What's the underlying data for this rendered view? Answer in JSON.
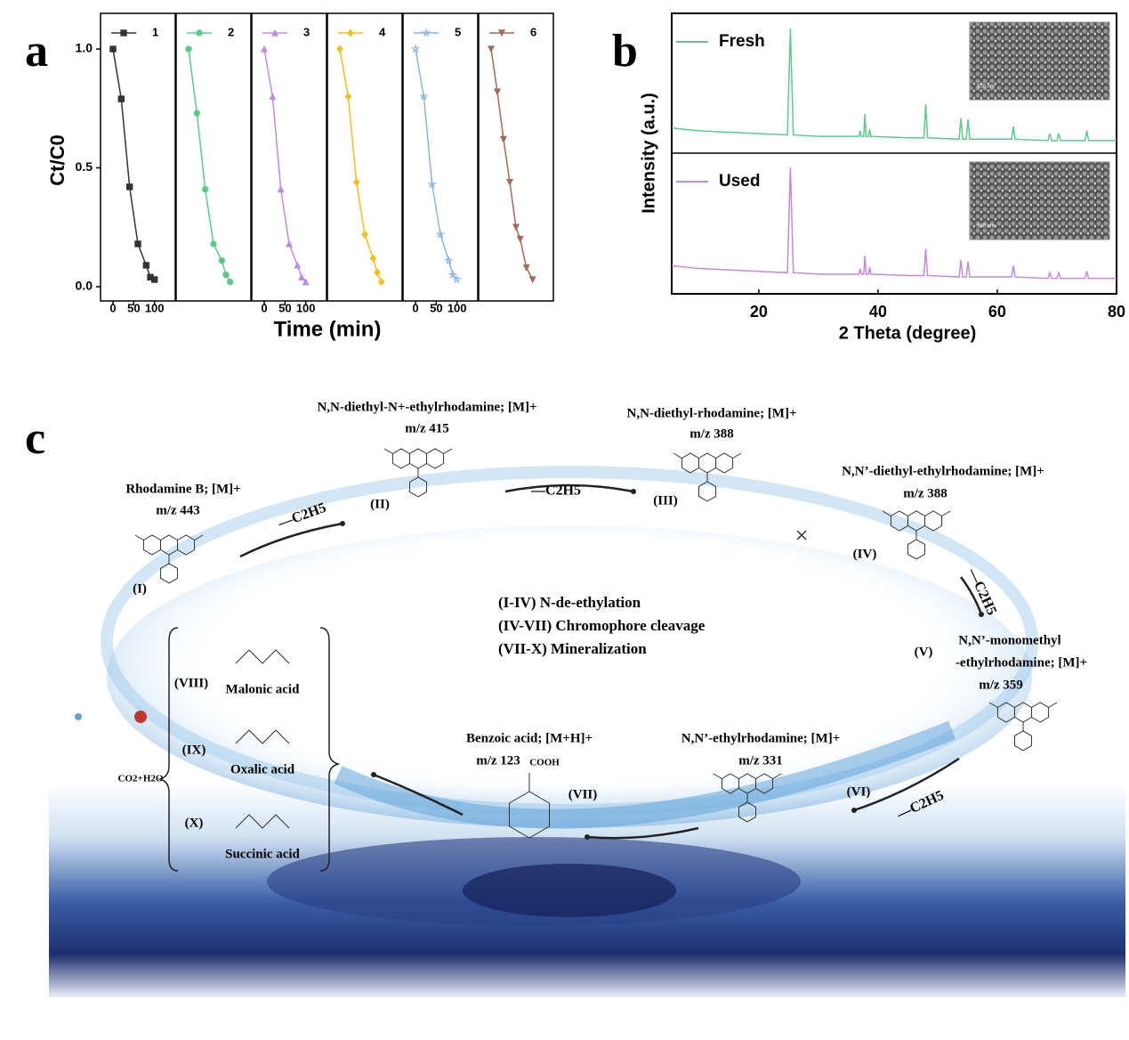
{
  "panel_labels": [
    "a",
    "b",
    "c"
  ],
  "chart_data": [
    {
      "type": "line",
      "ylabel": "Ct/C0",
      "xlabel": "Time (min)",
      "xlim": [
        -30,
        150
      ],
      "ylim": [
        -0.06,
        1.15
      ],
      "yticks": [
        {
          "value": 0,
          "label": "0.0"
        },
        {
          "value": 0.5,
          "label": "0.5"
        },
        {
          "value": 1,
          "label": "1.0"
        }
      ],
      "series": [
        {
          "name": "1",
          "color": "#333333",
          "marker": "square",
          "xticks": [
            0,
            50,
            100
          ],
          "x": [
            0,
            20,
            40,
            60,
            80,
            90,
            100
          ],
          "values": [
            1.0,
            0.79,
            0.42,
            0.18,
            0.09,
            0.04,
            0.03
          ]
        },
        {
          "name": "2",
          "color": "#5ec98a",
          "marker": "circle",
          "x": [
            0,
            20,
            40,
            60,
            80,
            90,
            100
          ],
          "values": [
            1.0,
            0.73,
            0.41,
            0.18,
            0.11,
            0.05,
            0.02
          ]
        },
        {
          "name": "3",
          "color": "#c08ae0",
          "marker": "triangle",
          "xticks": [
            0,
            50,
            100
          ],
          "x": [
            0,
            20,
            40,
            60,
            80,
            90,
            100
          ],
          "values": [
            1.0,
            0.8,
            0.41,
            0.18,
            0.09,
            0.04,
            0.02
          ]
        },
        {
          "name": "4",
          "color": "#f2c01e",
          "marker": "diamond",
          "x": [
            0,
            20,
            40,
            60,
            80,
            90,
            100
          ],
          "values": [
            1.0,
            0.8,
            0.44,
            0.22,
            0.12,
            0.06,
            0.02
          ]
        },
        {
          "name": "5",
          "color": "#8ab4e0",
          "marker": "star",
          "xticks": [
            0,
            50,
            100
          ],
          "x": [
            0,
            20,
            40,
            60,
            80,
            90,
            100
          ],
          "values": [
            1.0,
            0.8,
            0.43,
            0.22,
            0.11,
            0.05,
            0.03
          ]
        },
        {
          "name": "6",
          "color": "#a5695a",
          "marker": "triangle-down",
          "x": [
            0,
            15,
            30,
            45,
            60,
            70,
            85,
            100
          ],
          "values": [
            1.0,
            0.82,
            0.62,
            0.44,
            0.25,
            0.2,
            0.08,
            0.03
          ]
        }
      ]
    },
    {
      "type": "line",
      "ylabel": "Intensity (a.u.)",
      "xlabel": "2 Theta (degree)",
      "xlim": [
        5.4,
        80
      ],
      "ylim": [
        0,
        100
      ],
      "xticks": [
        20,
        40,
        60,
        80
      ],
      "series": [
        {
          "name": "Fresh",
          "color": "#5ec98a",
          "inset_label": "500 nm",
          "x": [
            5.4,
            10,
            15,
            20,
            24.8,
            25.3,
            25.8,
            30,
            36.8,
            37.0,
            37.2,
            37.6,
            37.8,
            38.0,
            38.4,
            38.6,
            38.8,
            45,
            47.7,
            48.0,
            48.3,
            53.6,
            53.9,
            54.2,
            54.8,
            55.1,
            55.4,
            62.4,
            62.7,
            63.0,
            68.5,
            68.8,
            69.1,
            70.0,
            70.3,
            70.6,
            74.7,
            75.0,
            75.3,
            80
          ],
          "values": [
            18,
            16,
            15,
            14,
            13,
            89,
            13,
            12,
            12,
            16,
            12,
            12,
            28,
            12,
            12,
            17,
            12,
            11,
            11,
            35,
            11,
            10,
            25,
            10,
            10,
            24,
            10,
            10,
            19,
            10,
            9,
            14,
            9,
            9,
            14,
            9,
            9,
            16,
            9,
            9
          ]
        },
        {
          "name": "Used",
          "color": "#c08ae0",
          "inset_label": "500 nm",
          "x": [
            5.4,
            10,
            15,
            20,
            24.8,
            25.3,
            25.8,
            30,
            36.8,
            37.0,
            37.2,
            37.6,
            37.8,
            38.0,
            38.4,
            38.6,
            38.8,
            45,
            47.7,
            48.0,
            48.3,
            53.6,
            53.9,
            54.2,
            54.8,
            55.1,
            55.4,
            62.4,
            62.7,
            63.0,
            68.5,
            68.8,
            69.1,
            70.0,
            70.3,
            70.6,
            74.7,
            75.0,
            75.3,
            80
          ],
          "values": [
            20,
            18,
            17,
            16,
            15,
            90,
            15,
            14,
            14,
            18,
            14,
            14,
            27,
            14,
            14,
            19,
            14,
            13,
            13,
            32,
            13,
            12,
            24,
            12,
            12,
            23,
            12,
            12,
            20,
            12,
            11,
            15,
            11,
            11,
            15,
            11,
            11,
            16,
            11,
            11
          ]
        }
      ]
    }
  ],
  "diagram": {
    "compounds": [
      {
        "id": "(I)",
        "name": [
          "Rhodamine B; [M]+"
        ],
        "mz": "m/z 443"
      },
      {
        "id": "(II)",
        "name": [
          "N,N-diethyl-N+-ethylrhodamine; [M]+"
        ],
        "mz": "m/z 415"
      },
      {
        "id": "(III)",
        "name": [
          "N,N-diethyl-rhodamine; [M]+"
        ],
        "mz": "m/z 388"
      },
      {
        "id": "(IV)",
        "name": [
          "N,N’-diethyl-ethylrhodamine; [M]+"
        ],
        "mz": "m/z 388"
      },
      {
        "id": "(V)",
        "name": [
          "N,N’-monomethyl",
          "-ethylrhodamine; [M]+"
        ],
        "mz": "m/z 359"
      },
      {
        "id": "(VI)",
        "name": [
          "N,N’-ethylrhodamine; [M]+"
        ],
        "mz": "m/z 331"
      },
      {
        "id": "(VII)",
        "name": [
          "Benzoic acid; [M+H]+"
        ],
        "mz": "m/z 123"
      }
    ],
    "stages": [
      "(I-IV) N-de-ethylation",
      "(IV-VII) Chromophore cleavage",
      "(VII-X) Mineralization"
    ],
    "acids": [
      {
        "id": "(VIII)",
        "name": "Malonic acid"
      },
      {
        "id": "(IX)",
        "name": "Oxalic acid"
      },
      {
        "id": "(X)",
        "name": "Succinic acid"
      }
    ],
    "product": "CO2+H2O",
    "losses": [
      "—C2H5",
      "—C2H5",
      "—C2H5",
      "—C2H5"
    ],
    "group": "COOH"
  }
}
